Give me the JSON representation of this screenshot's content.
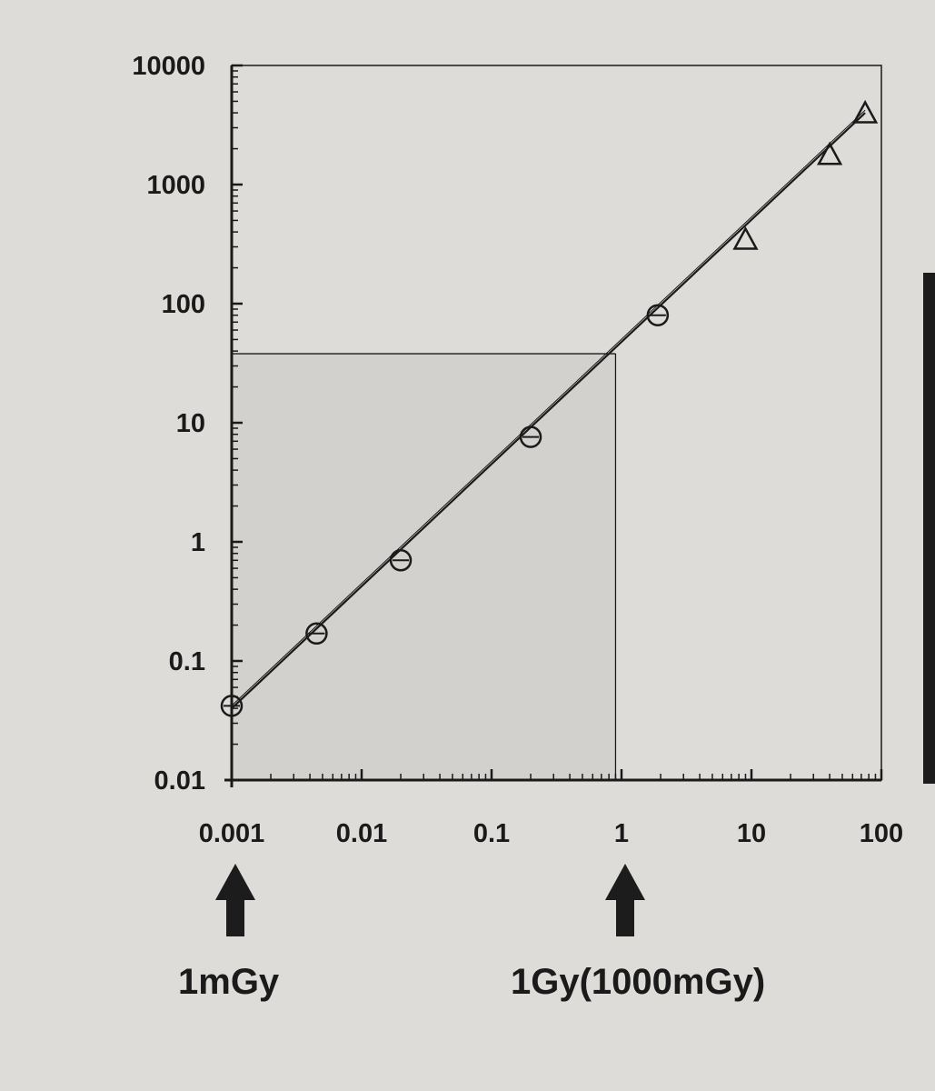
{
  "chart_data": {
    "type": "scatter",
    "x_scale": "log",
    "y_scale": "log",
    "xlim": [
      0.001,
      100
    ],
    "ylim": [
      0.01,
      10000
    ],
    "x_ticks": [
      "0.001",
      "0.01",
      "0.1",
      "1",
      "10",
      "100"
    ],
    "y_ticks": [
      "0.01",
      "0.1",
      "1",
      "10",
      "100",
      "1000",
      "10000"
    ],
    "grid": false,
    "series": [
      {
        "marker": "circle",
        "points": [
          [
            0.001,
            0.042
          ],
          [
            0.0045,
            0.17
          ],
          [
            0.02,
            0.7
          ],
          [
            0.2,
            7.6
          ],
          [
            1.9,
            80
          ]
        ]
      },
      {
        "marker": "triangle",
        "points": [
          [
            9,
            330
          ],
          [
            40,
            1700
          ],
          [
            75,
            3800
          ]
        ]
      }
    ],
    "fit_line": {
      "points": [
        [
          0.001,
          0.04
        ],
        [
          75,
          4000
        ]
      ]
    },
    "reference_lines": {
      "x": 0.9,
      "y": 38
    },
    "annotations": [
      "1mGy",
      "1Gy(1000mGy)"
    ]
  },
  "annotation_arrows": [
    {
      "x": 0.001,
      "label": "1mGy"
    },
    {
      "x": 1,
      "label": "1Gy(1000mGy)"
    }
  ],
  "colors": {
    "background": "#dedcd8",
    "ink": "#1a1a1a",
    "shade": "#d3d1cd"
  }
}
